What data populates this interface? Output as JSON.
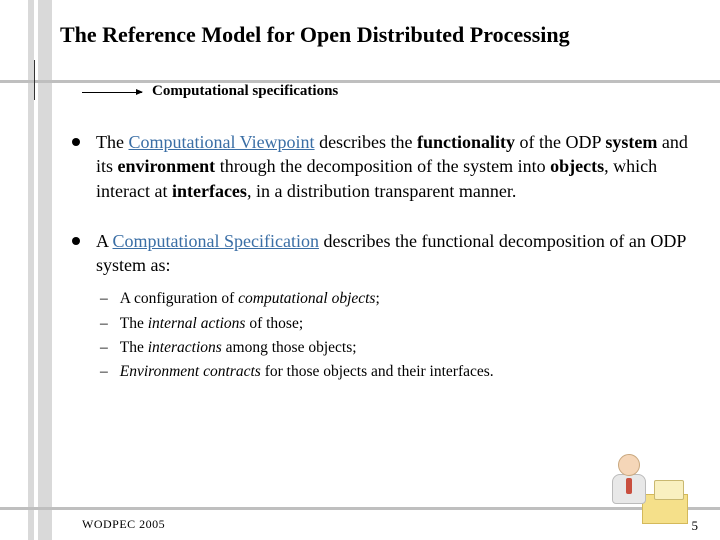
{
  "title": "The Reference Model for Open Distributed Processing",
  "subtitle": "Computational specifications",
  "bullet1": {
    "pre": "The ",
    "link": "Computational Viewpoint",
    "mid1": " describes the ",
    "b1": "functionality",
    "mid2": " of the ODP ",
    "b2": "system",
    "mid3": " and its ",
    "b3": "environment",
    "mid4": " through the decomposition of the system into ",
    "b4": "objects",
    "mid5": ", which interact at ",
    "b5": "interfaces",
    "mid6": ", in a distribution transparent manner."
  },
  "bullet2": {
    "pre": "A ",
    "link": "Computational Specification",
    "post": " describes the functional decomposition of an ODP system as:"
  },
  "sub": {
    "s1a": "A configuration of ",
    "s1i": "computational objects",
    "s1b": ";",
    "s2a": "The ",
    "s2i": "internal actions",
    "s2b": " of those;",
    "s3a": "The ",
    "s3i": "interactions",
    "s3b": " among those objects;",
    "s4i": "Environment contracts",
    "s4b": " for those objects and their interfaces."
  },
  "footer": "WODPEC 2005",
  "page": "5",
  "colors": {
    "stripe": "#d9d9d9",
    "hline": "#bfbfbf",
    "link": "#3a6ea5"
  }
}
